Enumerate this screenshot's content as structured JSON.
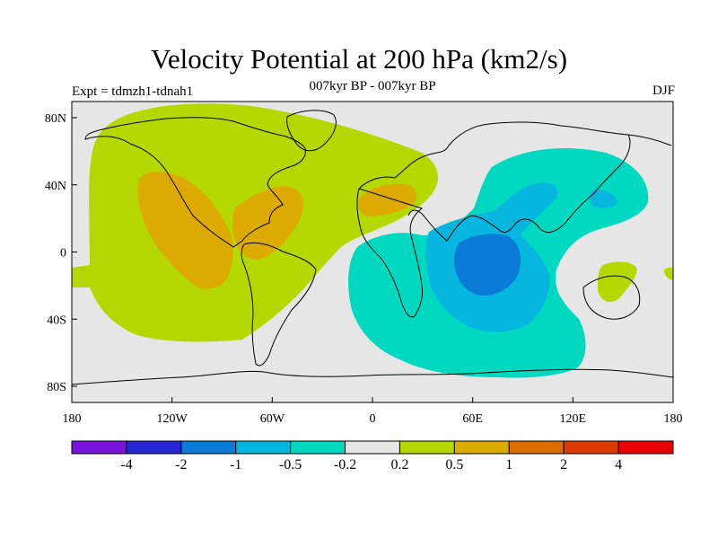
{
  "title": "Velocity Potential at 200 hPa (km2/s)",
  "subtitle": "007kyr BP - 007kyr BP",
  "expt_label": "Expt = tdmzh1-tdnah1",
  "season": "DJF",
  "map": {
    "lon_ticks": [
      "180",
      "120W",
      "60W",
      "0",
      "60E",
      "120E",
      "180"
    ],
    "lat_ticks": [
      "80N",
      "40N",
      "0",
      "40S",
      "80S"
    ],
    "ocean_color": "#e6e6e6",
    "coastline_color": "#000000"
  },
  "colorbar": {
    "colors": [
      "#7a13dc",
      "#2626d6",
      "#0a7cd8",
      "#06b6df",
      "#00d8c0",
      "#e6e6e6",
      "#b4d800",
      "#dcaa00",
      "#dc6e00",
      "#dc3a00",
      "#e80000"
    ],
    "labels": [
      "-4",
      "-2",
      "-1",
      "-0.5",
      "-0.2",
      "0.2",
      "0.5",
      "1",
      "2",
      "4"
    ]
  }
}
